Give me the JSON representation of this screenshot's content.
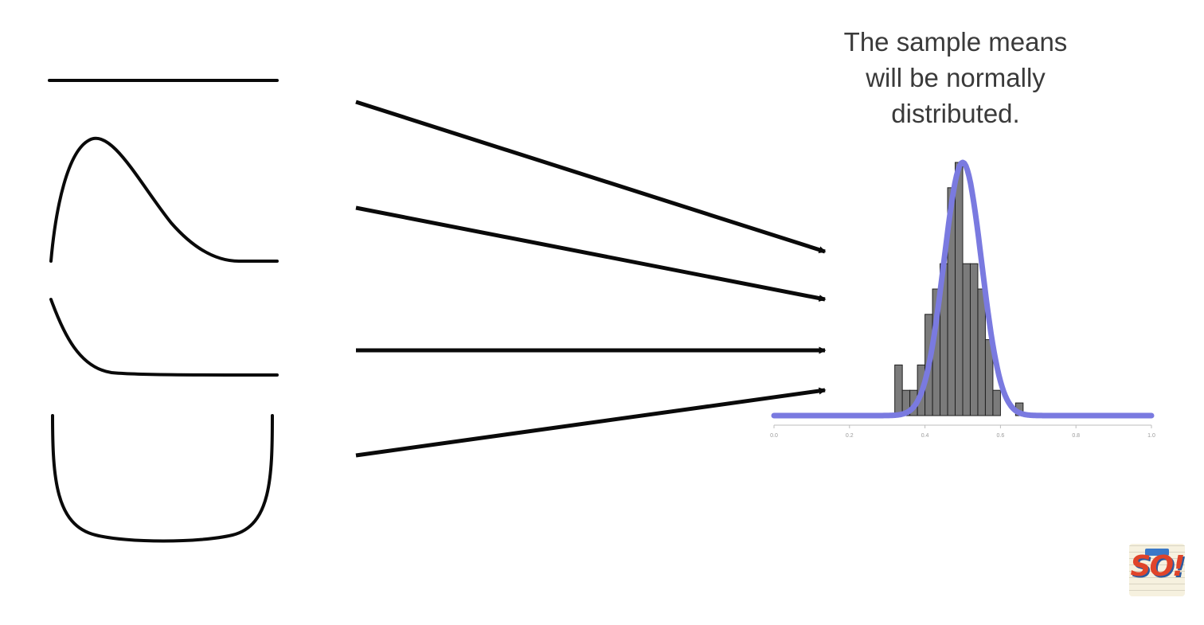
{
  "caption": {
    "line1": "The sample means",
    "line2": "will be normally",
    "line3": "distributed."
  },
  "source_distributions": [
    "uniform",
    "right-skewed",
    "exponential",
    "u-shaped"
  ],
  "colors": {
    "curve": "#7a7ae0",
    "bars": "#7b7b7b",
    "bar_edge": "#1f1f1f",
    "lines": "#0a0a0a",
    "caption": "#3a3a3a"
  },
  "chart_data": {
    "type": "bar",
    "xlim": [
      0.0,
      1.0
    ],
    "x_ticks": [
      "0.0",
      "0.2",
      "0.4",
      "0.6",
      "0.8",
      "1.0"
    ],
    "bin_width": 0.02,
    "bin_starts": [
      0.32,
      0.34,
      0.36,
      0.38,
      0.4,
      0.42,
      0.44,
      0.46,
      0.48,
      0.5,
      0.52,
      0.54,
      0.56,
      0.58,
      0.6,
      0.62,
      0.64
    ],
    "values": [
      2,
      1,
      1,
      2,
      4,
      5,
      6,
      9,
      10,
      6,
      6,
      5,
      3,
      1,
      0,
      0,
      0.5
    ],
    "curve": {
      "mean": 0.5,
      "sd": 0.05,
      "peak": 10
    }
  },
  "logo": {
    "text": "SO!",
    "banner": ""
  }
}
